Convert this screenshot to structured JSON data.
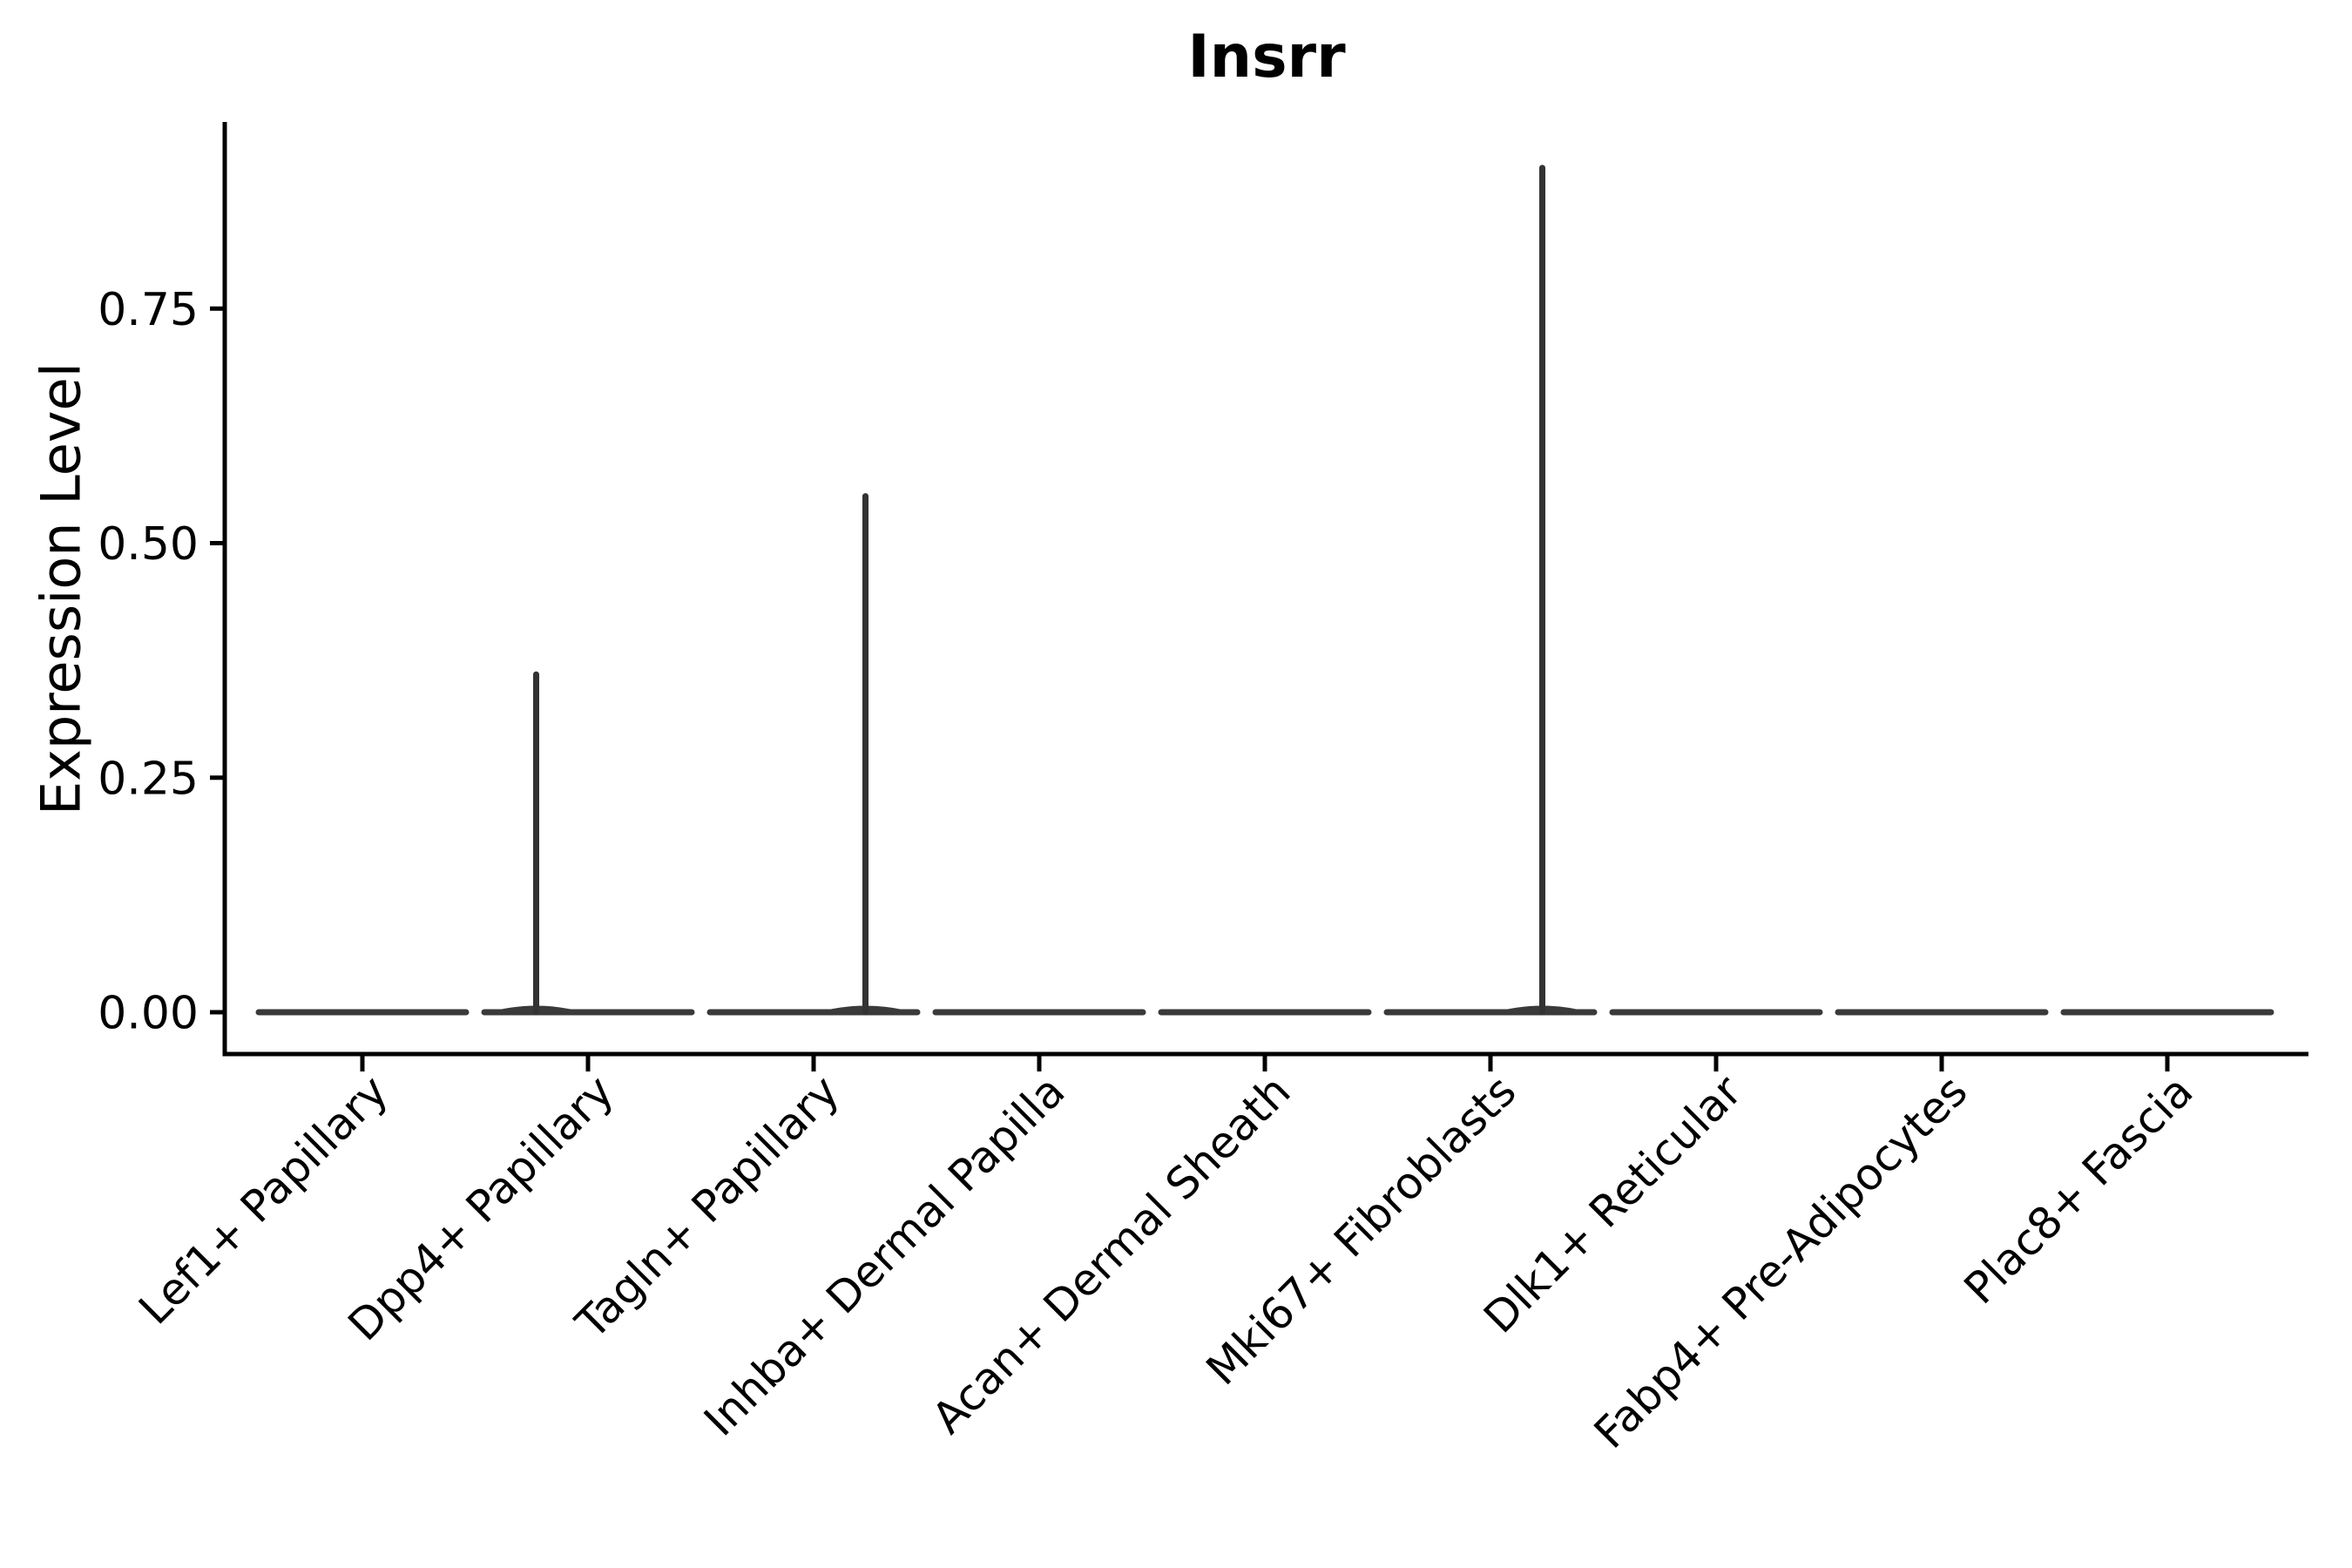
{
  "chart_data": {
    "type": "violin",
    "title": "Insrr",
    "ylabel": "Expression Level",
    "xlabel": "",
    "categories": [
      "Lef1+ Papillary",
      "Dpp4+ Papillary",
      "Tagln+ Papillary",
      "Inhba+ Dermal Papilla",
      "Acan+ Dermal Sheath",
      "Mki67+ Fibroblasts",
      "Dlk1+ Reticular",
      "Fabp4+ Pre-Adipocytes",
      "Plac8+ Fascia"
    ],
    "violins": [
      {
        "category": "Lef1+ Papillary",
        "baseline_value": 0.0,
        "max_value": 0.0,
        "spike_offset": 0.0
      },
      {
        "category": "Dpp4+ Papillary",
        "baseline_value": 0.0,
        "max_value": 0.36,
        "spike_offset": -0.5
      },
      {
        "category": "Tagln+ Papillary",
        "baseline_value": 0.0,
        "max_value": 0.55,
        "spike_offset": 0.5
      },
      {
        "category": "Inhba+ Dermal Papilla",
        "baseline_value": 0.0,
        "max_value": 0.0,
        "spike_offset": 0.0
      },
      {
        "category": "Acan+ Dermal Sheath",
        "baseline_value": 0.0,
        "max_value": 0.0,
        "spike_offset": 0.0
      },
      {
        "category": "Mki67+ Fibroblasts",
        "baseline_value": 0.0,
        "max_value": 0.9,
        "spike_offset": 0.5
      },
      {
        "category": "Dlk1+ Reticular",
        "baseline_value": 0.0,
        "max_value": 0.0,
        "spike_offset": 0.0
      },
      {
        "category": "Fabp4+ Pre-Adipocytes",
        "baseline_value": 0.0,
        "max_value": 0.0,
        "spike_offset": 0.0
      },
      {
        "category": "Plac8+ Fascia",
        "baseline_value": 0.0,
        "max_value": 0.0,
        "spike_offset": 0.0
      }
    ],
    "yticks": [
      0.0,
      0.25,
      0.5,
      0.75
    ],
    "ytick_labels": [
      "0.00",
      "0.25",
      "0.50",
      "0.75"
    ],
    "ylim": [
      0,
      0.95
    ],
    "grid": false,
    "legend": "none",
    "colors": {
      "axis": "#000000",
      "text": "#000000",
      "violin_body": "#3a3a3a",
      "violin_spike": "#333333"
    }
  }
}
